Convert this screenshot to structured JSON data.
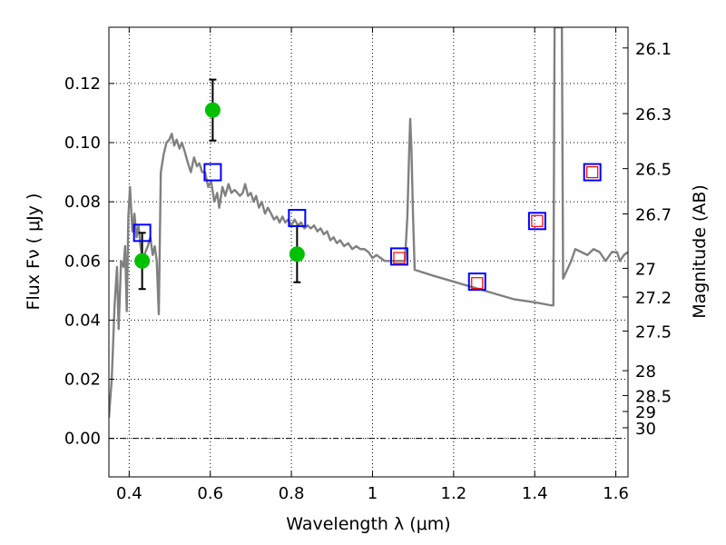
{
  "chart_data": {
    "type": "scatter",
    "xlabel": "Wavelength  λ (μm)",
    "ylabel": "Flux  Fν  ( μJy )",
    "ylabel_right": "Magnitude (AB)",
    "xlim": [
      0.35,
      1.63
    ],
    "ylim": [
      -0.013,
      0.139
    ],
    "grid": true,
    "x_ticks": [
      0.4,
      0.6,
      0.8,
      1.0,
      1.2,
      1.4,
      1.6
    ],
    "x_tick_labels": [
      "0.4",
      "0.6",
      "0.8",
      "1",
      "1.2",
      "1.4",
      "1.6"
    ],
    "y_ticks": [
      0.0,
      0.02,
      0.04,
      0.06,
      0.08,
      0.1,
      0.12
    ],
    "y_tick_labels": [
      "0.00",
      "0.02",
      "0.04",
      "0.06",
      "0.08",
      "0.10",
      "0.12"
    ],
    "mag_ticks": [
      {
        "label": "26.1",
        "flux": 0.132
      },
      {
        "label": "26.3",
        "flux": 0.1098
      },
      {
        "label": "26.5",
        "flux": 0.0912
      },
      {
        "label": "26.7",
        "flux": 0.0759
      },
      {
        "label": "27",
        "flux": 0.0575
      },
      {
        "label": "27.2",
        "flux": 0.0478
      },
      {
        "label": "27.5",
        "flux": 0.0363
      },
      {
        "label": "28",
        "flux": 0.0229
      },
      {
        "label": "28.5",
        "flux": 0.0145
      },
      {
        "label": "29",
        "flux": 0.0091
      },
      {
        "label": "30",
        "flux": 0.0036
      }
    ],
    "series": [
      {
        "kind": "line",
        "color": "#808080",
        "points": [
          [
            0.35,
            0.007
          ],
          [
            0.357,
            0.02
          ],
          [
            0.364,
            0.045
          ],
          [
            0.37,
            0.058
          ],
          [
            0.374,
            0.037
          ],
          [
            0.38,
            0.06
          ],
          [
            0.386,
            0.058
          ],
          [
            0.39,
            0.065
          ],
          [
            0.394,
            0.043
          ],
          [
            0.398,
            0.075
          ],
          [
            0.402,
            0.085
          ],
          [
            0.408,
            0.07
          ],
          [
            0.413,
            0.076
          ],
          [
            0.418,
            0.068
          ],
          [
            0.423,
            0.072
          ],
          [
            0.428,
            0.065
          ],
          [
            0.433,
            0.06
          ],
          [
            0.44,
            0.063
          ],
          [
            0.446,
            0.065
          ],
          [
            0.452,
            0.068
          ],
          [
            0.458,
            0.062
          ],
          [
            0.463,
            0.065
          ],
          [
            0.468,
            0.06
          ],
          [
            0.473,
            0.042
          ],
          [
            0.478,
            0.09
          ],
          [
            0.485,
            0.096
          ],
          [
            0.492,
            0.1
          ],
          [
            0.499,
            0.101
          ],
          [
            0.505,
            0.103
          ],
          [
            0.511,
            0.099
          ],
          [
            0.517,
            0.101
          ],
          [
            0.524,
            0.098
          ],
          [
            0.53,
            0.1
          ],
          [
            0.537,
            0.097
          ],
          [
            0.545,
            0.093
          ],
          [
            0.552,
            0.09
          ],
          [
            0.56,
            0.095
          ],
          [
            0.567,
            0.092
          ],
          [
            0.573,
            0.093
          ],
          [
            0.58,
            0.09
          ],
          [
            0.587,
            0.09
          ],
          [
            0.595,
            0.085
          ],
          [
            0.602,
            0.087
          ],
          [
            0.61,
            0.08
          ],
          [
            0.617,
            0.083
          ],
          [
            0.622,
            0.078
          ],
          [
            0.63,
            0.085
          ],
          [
            0.637,
            0.082
          ],
          [
            0.645,
            0.086
          ],
          [
            0.652,
            0.083
          ],
          [
            0.66,
            0.084
          ],
          [
            0.667,
            0.083
          ],
          [
            0.673,
            0.082
          ],
          [
            0.68,
            0.083
          ],
          [
            0.686,
            0.086
          ],
          [
            0.693,
            0.082
          ],
          [
            0.7,
            0.083
          ],
          [
            0.707,
            0.08
          ],
          [
            0.713,
            0.082
          ],
          [
            0.72,
            0.078
          ],
          [
            0.727,
            0.08
          ],
          [
            0.735,
            0.076
          ],
          [
            0.742,
            0.078
          ],
          [
            0.75,
            0.076
          ],
          [
            0.757,
            0.074
          ],
          [
            0.764,
            0.075
          ],
          [
            0.771,
            0.073
          ],
          [
            0.778,
            0.075
          ],
          [
            0.785,
            0.073
          ],
          [
            0.792,
            0.074
          ],
          [
            0.8,
            0.072
          ],
          [
            0.808,
            0.074
          ],
          [
            0.816,
            0.072
          ],
          [
            0.824,
            0.073
          ],
          [
            0.832,
            0.071
          ],
          [
            0.84,
            0.072
          ],
          [
            0.848,
            0.071
          ],
          [
            0.856,
            0.072
          ],
          [
            0.864,
            0.07
          ],
          [
            0.872,
            0.071
          ],
          [
            0.88,
            0.069
          ],
          [
            0.888,
            0.07
          ],
          [
            0.896,
            0.067
          ],
          [
            0.904,
            0.068
          ],
          [
            0.912,
            0.066
          ],
          [
            0.92,
            0.067
          ],
          [
            0.93,
            0.065
          ],
          [
            0.94,
            0.066
          ],
          [
            0.95,
            0.064
          ],
          [
            0.96,
            0.065
          ],
          [
            0.97,
            0.064
          ],
          [
            0.98,
            0.064
          ],
          [
            0.99,
            0.063
          ],
          [
            1.0,
            0.061
          ],
          [
            1.01,
            0.062
          ],
          [
            1.02,
            0.061
          ],
          [
            1.03,
            0.06
          ],
          [
            1.04,
            0.06
          ],
          [
            1.05,
            0.06
          ],
          [
            1.06,
            0.06
          ],
          [
            1.07,
            0.06
          ],
          [
            1.08,
            0.06
          ],
          [
            1.086,
            0.075
          ],
          [
            1.09,
            0.095
          ],
          [
            1.093,
            0.108
          ],
          [
            1.096,
            0.098
          ],
          [
            1.1,
            0.075
          ],
          [
            1.104,
            0.057
          ],
          [
            1.15,
            0.055
          ],
          [
            1.2,
            0.053
          ],
          [
            1.25,
            0.051
          ],
          [
            1.3,
            0.049
          ],
          [
            1.35,
            0.047
          ],
          [
            1.4,
            0.046
          ],
          [
            1.44,
            0.045
          ],
          [
            1.446,
            0.045
          ],
          [
            1.449,
            0.139
          ],
          [
            1.467,
            0.139
          ],
          [
            1.47,
            0.054
          ],
          [
            1.48,
            0.057
          ],
          [
            1.49,
            0.06
          ],
          [
            1.5,
            0.064
          ],
          [
            1.515,
            0.063
          ],
          [
            1.53,
            0.062
          ],
          [
            1.545,
            0.064
          ],
          [
            1.56,
            0.063
          ],
          [
            1.575,
            0.06
          ],
          [
            1.59,
            0.063
          ],
          [
            1.603,
            0.063
          ],
          [
            1.61,
            0.06
          ],
          [
            1.62,
            0.062
          ],
          [
            1.63,
            0.063
          ]
        ]
      },
      {
        "kind": "points",
        "marker": "circle",
        "color": "#00c000",
        "points": [
          {
            "x": 0.432,
            "y": 0.06,
            "yerr": 0.0095
          },
          {
            "x": 0.606,
            "y": 0.111,
            "yerr": 0.0103
          },
          {
            "x": 0.814,
            "y": 0.0623,
            "yerr": 0.0095
          }
        ]
      },
      {
        "kind": "points",
        "marker": "square",
        "color": "#0000ff",
        "points": [
          {
            "x": 0.432,
            "y": 0.0695
          },
          {
            "x": 0.606,
            "y": 0.09
          },
          {
            "x": 0.814,
            "y": 0.0745
          },
          {
            "x": 1.066,
            "y": 0.0615
          },
          {
            "x": 1.258,
            "y": 0.053
          },
          {
            "x": 1.406,
            "y": 0.0735
          },
          {
            "x": 1.542,
            "y": 0.09
          }
        ]
      },
      {
        "kind": "points",
        "marker": "square",
        "color": "#ff0000",
        "points": [
          {
            "x": 1.066,
            "y": 0.061
          },
          {
            "x": 1.258,
            "y": 0.0525
          },
          {
            "x": 1.406,
            "y": 0.0735
          },
          {
            "x": 1.542,
            "y": 0.09
          }
        ]
      }
    ]
  }
}
